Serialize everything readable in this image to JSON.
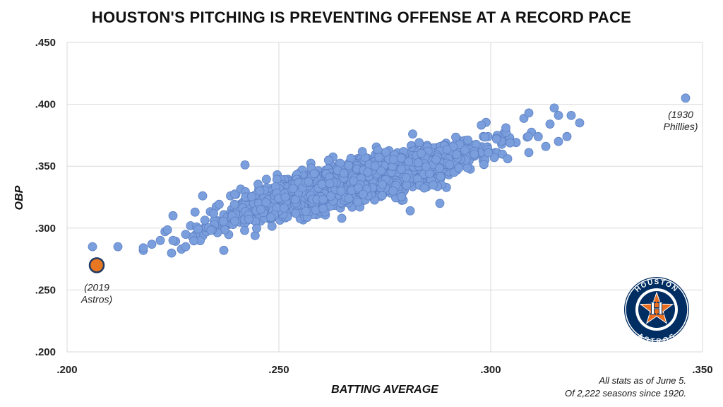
{
  "chart_data": {
    "type": "scatter",
    "title": "HOUSTON'S PITCHING IS PREVENTING OFFENSE AT A RECORD PACE",
    "xlabel": "BATTING AVERAGE",
    "ylabel": "OBP",
    "xlim": [
      0.2,
      0.35
    ],
    "ylim": [
      0.2,
      0.45
    ],
    "x_ticks": [
      ".200",
      ".250",
      ".300",
      ".350"
    ],
    "y_ticks": [
      ".200",
      ".250",
      ".300",
      ".350",
      ".400",
      ".450"
    ],
    "grid": true,
    "series_color": "#7b9fdc",
    "highlight_color": "#e87722",
    "highlight": {
      "x": 0.207,
      "y": 0.27,
      "label_lines": [
        "(2019",
        "Astros)"
      ]
    },
    "outlier": {
      "x": 0.346,
      "y": 0.405,
      "label_lines": [
        "(1930",
        "Phillies)"
      ]
    },
    "outliers_listed": [
      [
        0.206,
        0.285
      ],
      [
        0.212,
        0.285
      ],
      [
        0.218,
        0.282
      ],
      [
        0.218,
        0.284
      ],
      [
        0.22,
        0.287
      ],
      [
        0.222,
        0.29
      ],
      [
        0.225,
        0.29
      ],
      [
        0.225,
        0.31
      ],
      [
        0.227,
        0.283
      ],
      [
        0.228,
        0.285
      ],
      [
        0.228,
        0.295
      ],
      [
        0.232,
        0.326
      ],
      [
        0.237,
        0.282
      ],
      [
        0.242,
        0.351
      ],
      [
        0.281,
        0.314
      ],
      [
        0.288,
        0.32
      ],
      [
        0.304,
        0.356
      ],
      [
        0.309,
        0.393
      ],
      [
        0.309,
        0.361
      ],
      [
        0.313,
        0.366
      ],
      [
        0.314,
        0.384
      ],
      [
        0.315,
        0.397
      ],
      [
        0.316,
        0.391
      ],
      [
        0.316,
        0.37
      ],
      [
        0.318,
        0.374
      ],
      [
        0.319,
        0.391
      ],
      [
        0.321,
        0.385
      ]
    ],
    "cluster": {
      "n_seasons": 2222,
      "trend_points": [
        [
          0.23,
          0.3
        ],
        [
          0.25,
          0.322
        ],
        [
          0.27,
          0.34
        ],
        [
          0.29,
          0.357
        ],
        [
          0.305,
          0.37
        ]
      ],
      "x_range": [
        0.222,
        0.312
      ],
      "y_spread": 0.024
    },
    "notes": [
      "All stats as of June 5.",
      "Of 2,222 seasons since 1920."
    ]
  },
  "logo": {
    "top_text": "HOUSTON",
    "bottom_text": "ASTROS",
    "navy": "#002d62",
    "orange": "#eb6e1f"
  }
}
